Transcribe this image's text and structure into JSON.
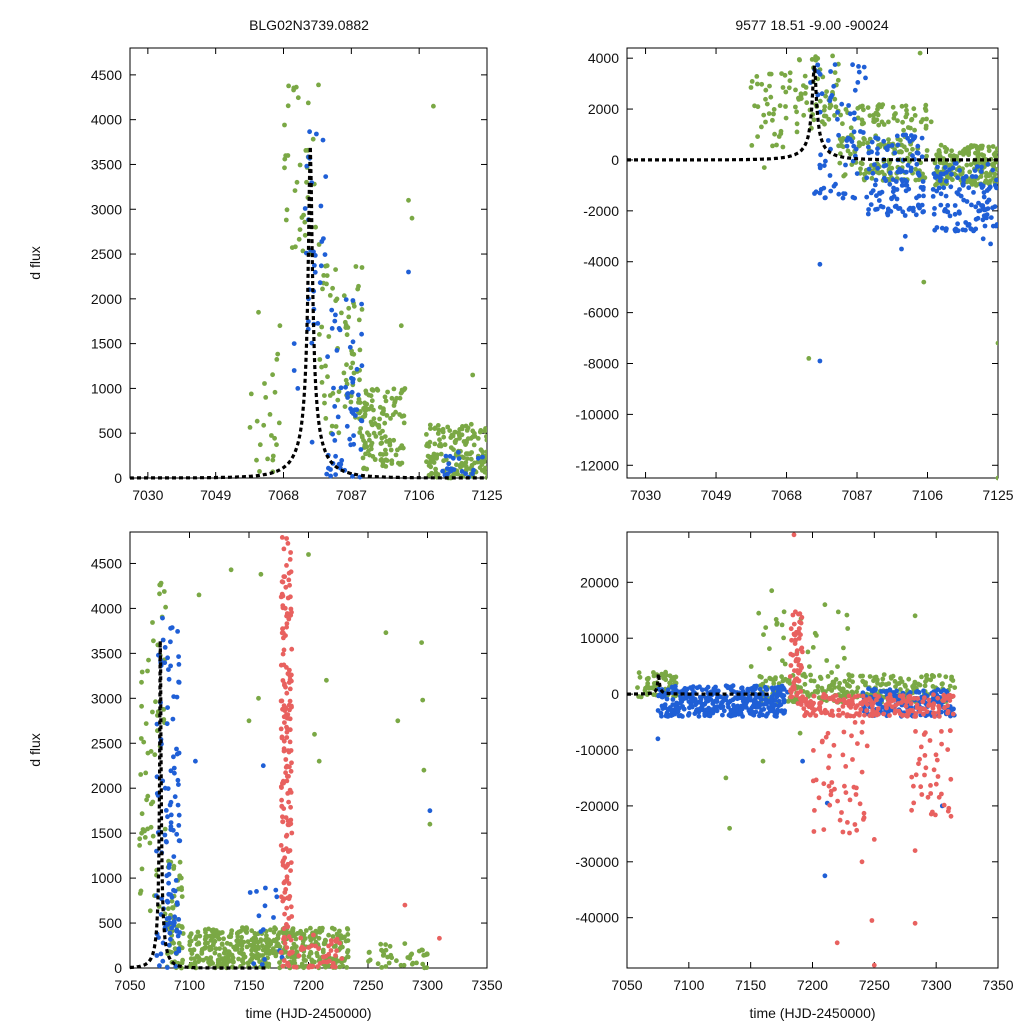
{
  "page": {
    "title_left": "BLG02N3739.0882",
    "title_right": "9577  18.51  -9.00  -90024"
  },
  "colors": {
    "green": "#7aa845",
    "blue": "#1f5fd6",
    "red": "#e8615f",
    "model": "#000000"
  },
  "chart_data": [
    {
      "id": "top-left",
      "type": "scatter",
      "xlim": [
        7025,
        7125
      ],
      "ylim": [
        0,
        4800
      ],
      "xticks": [
        7030,
        7049,
        7068,
        7087,
        7106,
        7125
      ],
      "yticks": [
        0,
        500,
        1000,
        1500,
        2000,
        2500,
        3000,
        3500,
        4000,
        4500
      ],
      "ylabel": "d flux",
      "xlabel": "",
      "model": {
        "t0": 7075.5,
        "u0": 0.05,
        "tE": 10,
        "peak": 3700
      },
      "series": [
        {
          "name": "green",
          "color": "green",
          "ranges": [
            [
              7058,
              7068,
              0,
              1500,
              20
            ],
            [
              7068,
              7078,
              2500,
              4400,
              40
            ],
            [
              7078,
              7090,
              500,
              2500,
              80
            ],
            [
              7090,
              7102,
              100,
              1000,
              120
            ],
            [
              7108,
              7125,
              0,
              600,
              160
            ]
          ],
          "points": [
            [
              7061,
              1850
            ],
            [
              7063,
              900
            ],
            [
              7065,
              200
            ],
            [
              7067,
              1700
            ],
            [
              7103,
              3100
            ],
            [
              7104,
              2900
            ],
            [
              7110,
              4150
            ],
            [
              7121,
              1150
            ],
            [
              7101,
              1700
            ]
          ]
        },
        {
          "name": "blue",
          "color": "blue",
          "ranges": [
            [
              7074,
              7080,
              1500,
              3900,
              30
            ],
            [
              7080,
              7090,
              0,
              2000,
              60
            ],
            [
              7112,
              7124,
              0,
              300,
              20
            ]
          ],
          "points": [
            [
              7071,
              1500
            ],
            [
              7071,
              1200
            ],
            [
              7072,
              1000
            ],
            [
              7076,
              400
            ],
            [
              7103,
              2300
            ],
            [
              7075,
              2000
            ]
          ]
        }
      ]
    },
    {
      "id": "top-right",
      "type": "scatter",
      "xlim": [
        7025,
        7125
      ],
      "ylim": [
        -12500,
        4400
      ],
      "xticks": [
        7030,
        7049,
        7068,
        7087,
        7106,
        7125
      ],
      "yticks": [
        -12000,
        -10000,
        -8000,
        -6000,
        -4000,
        -2000,
        0,
        2000,
        4000
      ],
      "ylabel": "",
      "xlabel": "",
      "model": {
        "t0": 7075.5,
        "u0": 0.05,
        "tE": 10,
        "peak": 3700
      },
      "series": [
        {
          "name": "green",
          "color": "green",
          "ranges": [
            [
              7058,
              7070,
              500,
              3500,
              40
            ],
            [
              7070,
              7082,
              1000,
              4200,
              60
            ],
            [
              7082,
              7106,
              -800,
              2200,
              180
            ],
            [
              7108,
              7125,
              -1000,
              600,
              200
            ]
          ],
          "points": [
            [
              7074,
              -7800
            ],
            [
              7104,
              4200
            ],
            [
              7105,
              -4800
            ],
            [
              7125,
              -7200
            ],
            [
              7125,
              -12500
            ],
            [
              7107,
              1500
            ],
            [
              7062,
              -300
            ]
          ]
        },
        {
          "name": "blue",
          "color": "blue",
          "ranges": [
            [
              7074,
              7090,
              -1500,
              3800,
              70
            ],
            [
              7090,
              7105,
              -2200,
              1000,
              120
            ],
            [
              7107,
              7125,
              -2800,
              -100,
              120
            ]
          ],
          "points": [
            [
              7077,
              -4100
            ],
            [
              7077,
              -7900
            ],
            [
              7077,
              -1300
            ],
            [
              7100,
              -3000
            ],
            [
              7099,
              -3500
            ],
            [
              7123,
              -3300
            ],
            [
              7121,
              -3100
            ],
            [
              7111,
              -2700
            ]
          ]
        }
      ]
    },
    {
      "id": "bottom-left",
      "type": "scatter",
      "xlim": [
        7050,
        7350
      ],
      "ylim": [
        0,
        4850
      ],
      "xticks": [
        7050,
        7100,
        7150,
        7200,
        7250,
        7300,
        7350
      ],
      "yticks": [
        0,
        500,
        1000,
        1500,
        2000,
        2500,
        3000,
        3500,
        4000,
        4500
      ],
      "ylabel": "d flux",
      "xlabel": "time (HJD-2450000)",
      "model": {
        "t0": 7075.5,
        "u0": 0.05,
        "tE": 10,
        "peak": 3700
      },
      "series": [
        {
          "name": "green",
          "color": "green",
          "ranges": [
            [
              7058,
              7080,
              600,
              4300,
              60
            ],
            [
              7080,
              7095,
              0,
              1200,
              60
            ],
            [
              7100,
              7235,
              0,
              450,
              450
            ],
            [
              7250,
              7300,
              0,
              300,
              40
            ]
          ],
          "points": [
            [
              7108,
              4150
            ],
            [
              7135,
              4430
            ],
            [
              7160,
              4380
            ],
            [
              7200,
              4600
            ],
            [
              7158,
              3000
            ],
            [
              7215,
              3200
            ],
            [
              7265,
              3730
            ],
            [
              7295,
              3620
            ],
            [
              7296,
              2980
            ],
            [
              7297,
              2200
            ],
            [
              7302,
              1600
            ],
            [
              7275,
              2750
            ],
            [
              7150,
              2750
            ],
            [
              7205,
              2600
            ],
            [
              7209,
              2300
            ]
          ]
        },
        {
          "name": "blue",
          "color": "blue",
          "ranges": [
            [
              7072,
              7092,
              0,
              3900,
              120
            ],
            [
              7150,
              7180,
              0,
              900,
              15
            ]
          ],
          "points": [
            [
              7105,
              2300
            ],
            [
              7162,
              2250
            ],
            [
              7302,
              1750
            ]
          ]
        },
        {
          "name": "red",
          "color": "red",
          "ranges": [
            [
              7177,
              7186,
              0,
              4800,
              180
            ],
            [
              7186,
              7230,
              0,
              400,
              40
            ]
          ],
          "points": [
            [
              7281,
              700
            ],
            [
              7310,
              330
            ]
          ]
        }
      ]
    },
    {
      "id": "bottom-right",
      "type": "scatter",
      "xlim": [
        7050,
        7350
      ],
      "ylim": [
        -49000,
        29000
      ],
      "xticks": [
        7050,
        7100,
        7150,
        7200,
        7250,
        7300,
        7350
      ],
      "yticks": [
        -40000,
        -30000,
        -20000,
        -10000,
        0,
        10000,
        20000
      ],
      "ylabel": "",
      "xlabel": "time (HJD-2450000)",
      "model": {
        "t0": 7075.5,
        "u0": 0.05,
        "tE": 10,
        "peak": 3700
      },
      "series": [
        {
          "name": "green",
          "color": "green",
          "ranges": [
            [
              7058,
              7090,
              -500,
              4000,
              60
            ],
            [
              7150,
              7315,
              -1500,
              3500,
              260
            ],
            [
              7150,
              7230,
              0,
              15000,
              40
            ]
          ],
          "points": [
            [
              7167,
              18500
            ],
            [
              7210,
              16000
            ],
            [
              7283,
              14000
            ],
            [
              7133,
              -24000
            ],
            [
              7130,
              -15000
            ],
            [
              7160,
              -12000
            ],
            [
              7190,
              -7000
            ]
          ]
        },
        {
          "name": "blue",
          "color": "blue",
          "ranges": [
            [
              7075,
              7180,
              -4000,
              1500,
              380
            ],
            [
              7240,
              7315,
              -4000,
              1000,
              160
            ]
          ],
          "points": [
            [
              7075,
              -8000
            ],
            [
              7210,
              -32500
            ],
            [
              7212,
              -19500
            ],
            [
              7305,
              -20000
            ],
            [
              7192,
              -12000
            ]
          ]
        },
        {
          "name": "red",
          "color": "red",
          "ranges": [
            [
              7182,
              7192,
              -2000,
              15000,
              70
            ],
            [
              7190,
              7315,
              -4000,
              0,
              200
            ],
            [
              7200,
              7245,
              -25000,
              -5000,
              50
            ],
            [
              7280,
              7312,
              -22000,
              -6000,
              40
            ]
          ],
          "points": [
            [
              7185,
              28500
            ],
            [
              7220,
              -44500
            ],
            [
              7248,
              -40500
            ],
            [
              7283,
              -41000
            ],
            [
              7250,
              -48500
            ],
            [
              7240,
              -30000
            ],
            [
              7250,
              -26000
            ],
            [
              7283,
              -28000
            ]
          ]
        }
      ]
    }
  ]
}
